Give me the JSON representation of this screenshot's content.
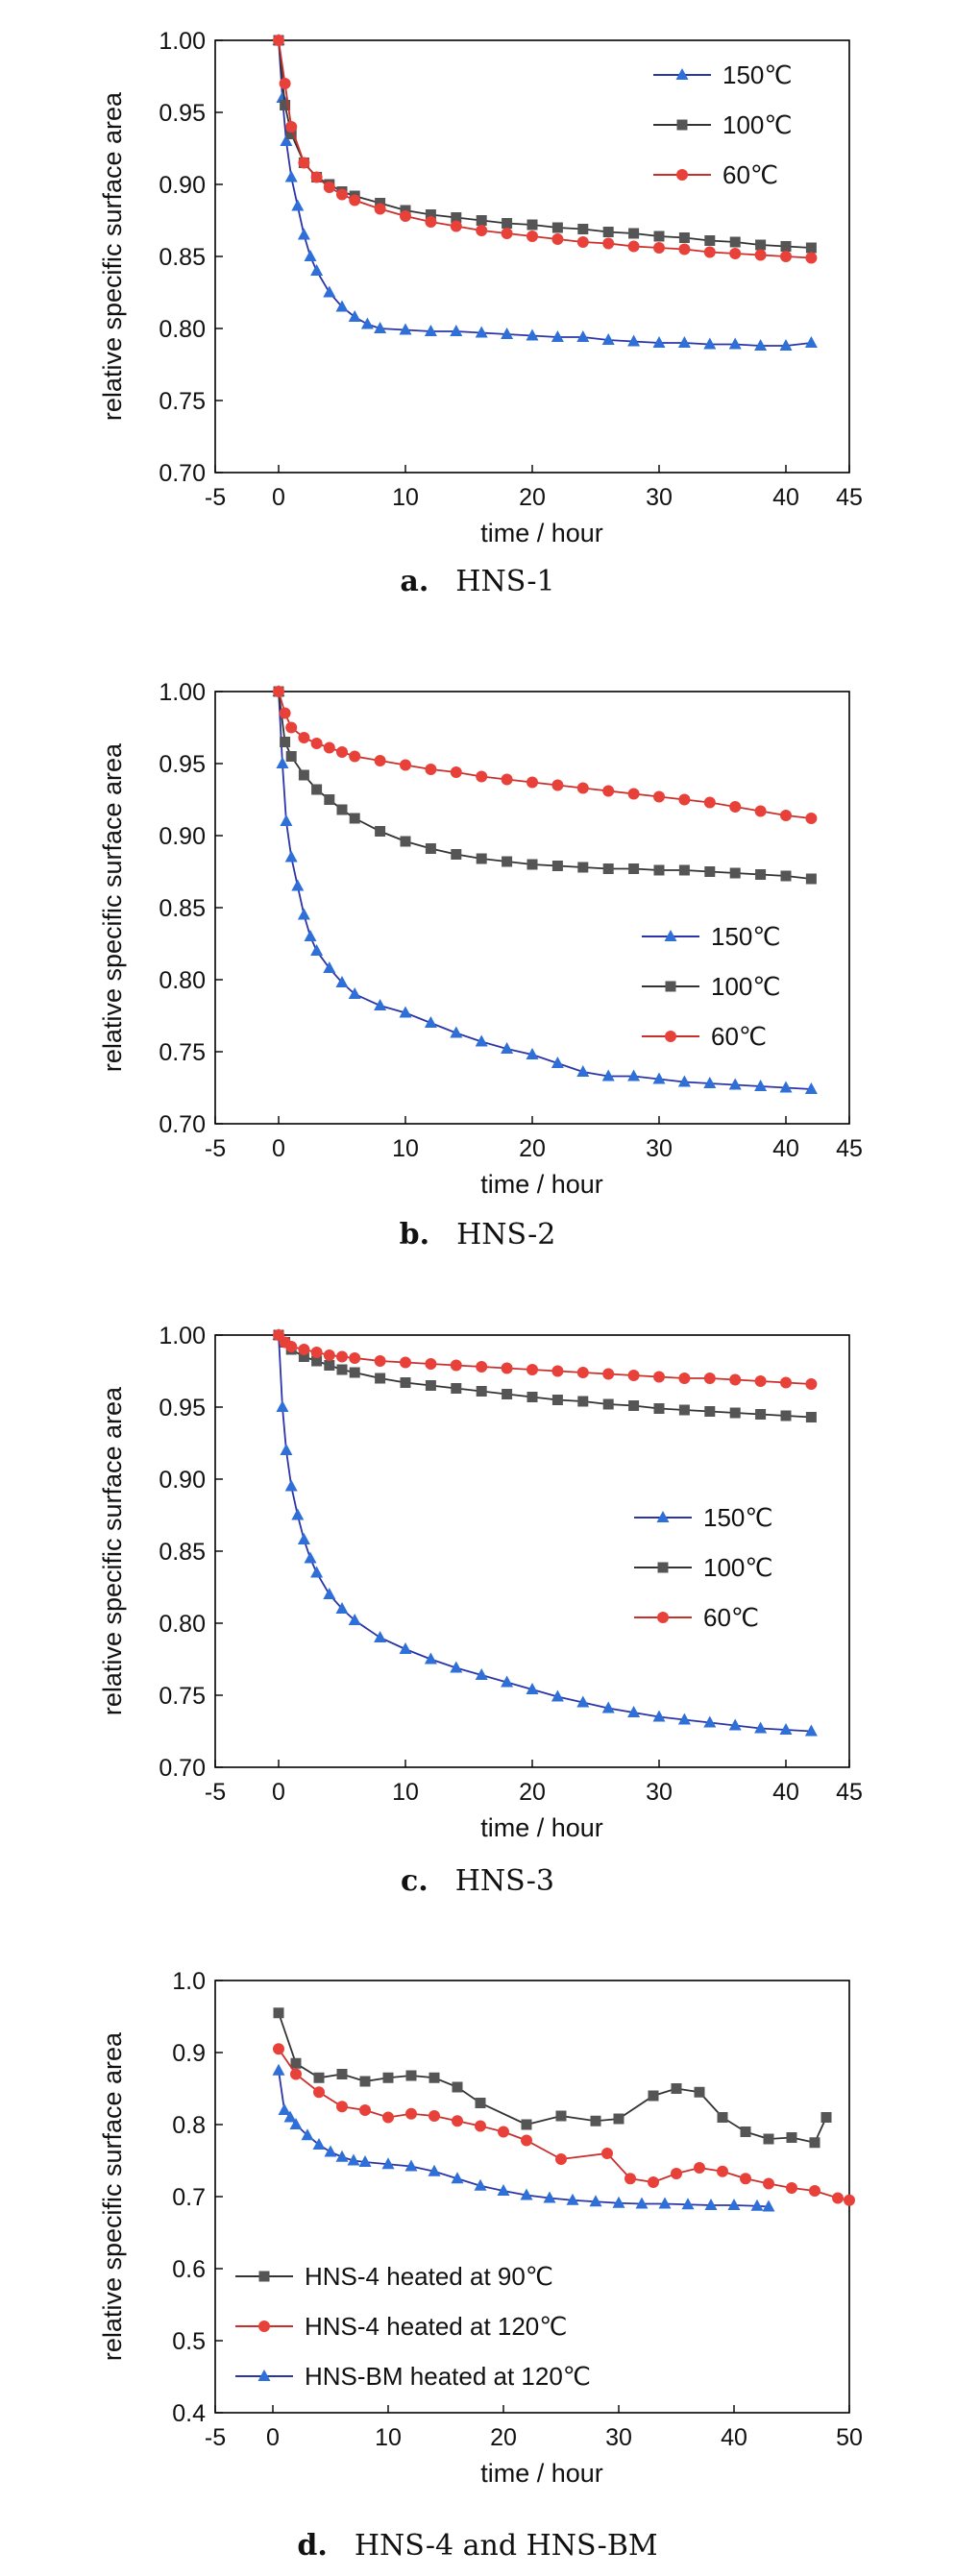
{
  "chart_data": [
    {
      "type": "scatter",
      "panel_letter": "a.",
      "caption": "HNS-1",
      "xlabel": "time / hour",
      "ylabel": "relative specific surface area",
      "xlim": [
        -5,
        45
      ],
      "ylim": [
        0.7,
        1.0
      ],
      "xticks": [
        "-5",
        "0",
        "10",
        "20",
        "30",
        "40",
        "45"
      ],
      "yticks": [
        "0.70",
        "0.75",
        "0.80",
        "0.85",
        "0.90",
        "0.95",
        "1.00"
      ],
      "legend_position": "top-right",
      "series": [
        {
          "name": "150℃",
          "marker": "triangle",
          "color": "#2e6fd8",
          "line_color": "#2b35a8",
          "x": [
            0,
            0.3,
            0.6,
            1,
            1.5,
            2,
            2.5,
            3,
            4,
            5,
            6,
            7,
            8,
            10,
            12,
            14,
            16,
            18,
            20,
            22,
            24,
            26,
            28,
            30,
            32,
            34,
            36,
            38,
            40,
            42
          ],
          "y": [
            1.0,
            0.96,
            0.93,
            0.905,
            0.885,
            0.865,
            0.85,
            0.84,
            0.825,
            0.815,
            0.808,
            0.803,
            0.8,
            0.799,
            0.798,
            0.798,
            0.797,
            0.796,
            0.795,
            0.794,
            0.794,
            0.792,
            0.791,
            0.79,
            0.79,
            0.789,
            0.789,
            0.788,
            0.788,
            0.79
          ]
        },
        {
          "name": "100℃",
          "marker": "square",
          "color": "#555555",
          "line_color": "#333333",
          "x": [
            0,
            0.5,
            1,
            2,
            3,
            4,
            5,
            6,
            8,
            10,
            12,
            14,
            16,
            18,
            20,
            22,
            24,
            26,
            28,
            30,
            32,
            34,
            36,
            38,
            40,
            42
          ],
          "y": [
            1.0,
            0.955,
            0.935,
            0.915,
            0.905,
            0.9,
            0.895,
            0.892,
            0.887,
            0.882,
            0.879,
            0.877,
            0.875,
            0.873,
            0.872,
            0.87,
            0.869,
            0.867,
            0.866,
            0.864,
            0.863,
            0.861,
            0.86,
            0.858,
            0.857,
            0.856
          ]
        },
        {
          "name": "60℃",
          "marker": "circle",
          "color": "#e8413a",
          "line_color": "#c9302c",
          "x": [
            0,
            0.5,
            1,
            2,
            3,
            4,
            5,
            6,
            8,
            10,
            12,
            14,
            16,
            18,
            20,
            22,
            24,
            26,
            28,
            30,
            32,
            34,
            36,
            38,
            40,
            42
          ],
          "y": [
            1.0,
            0.97,
            0.94,
            0.915,
            0.905,
            0.898,
            0.893,
            0.889,
            0.883,
            0.878,
            0.874,
            0.871,
            0.868,
            0.866,
            0.864,
            0.862,
            0.86,
            0.859,
            0.857,
            0.856,
            0.855,
            0.853,
            0.852,
            0.851,
            0.85,
            0.849
          ]
        }
      ]
    },
    {
      "type": "scatter",
      "panel_letter": "b.",
      "caption": "HNS-2",
      "xlabel": "time / hour",
      "ylabel": "relative specific surface area",
      "xlim": [
        -5,
        45
      ],
      "ylim": [
        0.7,
        1.0
      ],
      "xticks": [
        "-5",
        "0",
        "10",
        "20",
        "30",
        "40",
        "45"
      ],
      "yticks": [
        "0.70",
        "0.75",
        "0.80",
        "0.85",
        "0.90",
        "0.95",
        "1.00"
      ],
      "legend_position": "bottom-right",
      "series": [
        {
          "name": "150℃",
          "marker": "triangle",
          "color": "#2e6fd8",
          "line_color": "#2b35a8",
          "x": [
            0,
            0.3,
            0.6,
            1,
            1.5,
            2,
            2.5,
            3,
            4,
            5,
            6,
            8,
            10,
            12,
            14,
            16,
            18,
            20,
            22,
            24,
            26,
            28,
            30,
            32,
            34,
            36,
            38,
            40,
            42
          ],
          "y": [
            1.0,
            0.95,
            0.91,
            0.885,
            0.865,
            0.845,
            0.83,
            0.82,
            0.808,
            0.798,
            0.79,
            0.782,
            0.777,
            0.77,
            0.763,
            0.757,
            0.752,
            0.748,
            0.742,
            0.736,
            0.733,
            0.733,
            0.731,
            0.729,
            0.728,
            0.727,
            0.726,
            0.725,
            0.724
          ]
        },
        {
          "name": "100℃",
          "marker": "square",
          "color": "#555555",
          "line_color": "#333333",
          "x": [
            0,
            0.5,
            1,
            2,
            3,
            4,
            5,
            6,
            8,
            10,
            12,
            14,
            16,
            18,
            20,
            22,
            24,
            26,
            28,
            30,
            32,
            34,
            36,
            38,
            40,
            42
          ],
          "y": [
            1.0,
            0.965,
            0.955,
            0.942,
            0.932,
            0.925,
            0.918,
            0.912,
            0.903,
            0.896,
            0.891,
            0.887,
            0.884,
            0.882,
            0.88,
            0.879,
            0.878,
            0.877,
            0.877,
            0.876,
            0.876,
            0.875,
            0.874,
            0.873,
            0.872,
            0.87
          ]
        },
        {
          "name": "60℃",
          "marker": "circle",
          "color": "#e8413a",
          "line_color": "#c9302c",
          "x": [
            0,
            0.5,
            1,
            2,
            3,
            4,
            5,
            6,
            8,
            10,
            12,
            14,
            16,
            18,
            20,
            22,
            24,
            26,
            28,
            30,
            32,
            34,
            36,
            38,
            40,
            42
          ],
          "y": [
            1.0,
            0.985,
            0.975,
            0.968,
            0.964,
            0.961,
            0.958,
            0.955,
            0.952,
            0.949,
            0.946,
            0.944,
            0.941,
            0.939,
            0.937,
            0.935,
            0.933,
            0.931,
            0.929,
            0.927,
            0.925,
            0.923,
            0.92,
            0.917,
            0.914,
            0.912
          ]
        }
      ]
    },
    {
      "type": "scatter",
      "panel_letter": "c.",
      "caption": "HNS-3",
      "xlabel": "time / hour",
      "ylabel": "relative specific surface area",
      "xlim": [
        -5,
        45
      ],
      "ylim": [
        0.7,
        1.0
      ],
      "xticks": [
        "-5",
        "0",
        "10",
        "20",
        "30",
        "40",
        "45"
      ],
      "yticks": [
        "0.70",
        "0.75",
        "0.80",
        "0.85",
        "0.90",
        "0.95",
        "1.00"
      ],
      "legend_position": "center-right",
      "series": [
        {
          "name": "150℃",
          "marker": "triangle",
          "color": "#2e6fd8",
          "line_color": "#2b35a8",
          "x": [
            0,
            0.3,
            0.6,
            1,
            1.5,
            2,
            2.5,
            3,
            4,
            5,
            6,
            8,
            10,
            12,
            14,
            16,
            18,
            20,
            22,
            24,
            26,
            28,
            30,
            32,
            34,
            36,
            38,
            40,
            42
          ],
          "y": [
            1.0,
            0.95,
            0.92,
            0.895,
            0.875,
            0.858,
            0.845,
            0.835,
            0.82,
            0.81,
            0.802,
            0.79,
            0.782,
            0.775,
            0.769,
            0.764,
            0.759,
            0.754,
            0.749,
            0.745,
            0.741,
            0.738,
            0.735,
            0.733,
            0.731,
            0.729,
            0.727,
            0.726,
            0.725
          ]
        },
        {
          "name": "100℃",
          "marker": "square",
          "color": "#555555",
          "line_color": "#333333",
          "x": [
            0,
            0.5,
            1,
            2,
            3,
            4,
            5,
            6,
            8,
            10,
            12,
            14,
            16,
            18,
            20,
            22,
            24,
            26,
            28,
            30,
            32,
            34,
            36,
            38,
            40,
            42
          ],
          "y": [
            1.0,
            0.995,
            0.99,
            0.985,
            0.982,
            0.979,
            0.976,
            0.974,
            0.97,
            0.967,
            0.965,
            0.963,
            0.961,
            0.959,
            0.957,
            0.955,
            0.954,
            0.952,
            0.951,
            0.949,
            0.948,
            0.947,
            0.946,
            0.945,
            0.944,
            0.943
          ]
        },
        {
          "name": "60℃",
          "marker": "circle",
          "color": "#e8413a",
          "line_color": "#c9302c",
          "x": [
            0,
            0.5,
            1,
            2,
            3,
            4,
            5,
            6,
            8,
            10,
            12,
            14,
            16,
            18,
            20,
            22,
            24,
            26,
            28,
            30,
            32,
            34,
            36,
            38,
            40,
            42
          ],
          "y": [
            1.0,
            0.995,
            0.992,
            0.99,
            0.988,
            0.986,
            0.985,
            0.984,
            0.982,
            0.981,
            0.98,
            0.979,
            0.978,
            0.977,
            0.976,
            0.975,
            0.974,
            0.973,
            0.972,
            0.971,
            0.97,
            0.97,
            0.969,
            0.968,
            0.967,
            0.966
          ]
        }
      ]
    },
    {
      "type": "line",
      "panel_letter": "d.",
      "caption": "HNS-4 and HNS-BM",
      "xlabel": "time / hour",
      "ylabel": "relative specific surface area",
      "xlim": [
        -5,
        50
      ],
      "ylim": [
        0.4,
        1.0
      ],
      "xticks": [
        "-5",
        "0",
        "10",
        "20",
        "30",
        "40",
        "50"
      ],
      "yticks": [
        "0.4",
        "0.5",
        "0.6",
        "0.7",
        "0.8",
        "0.9",
        "1.0"
      ],
      "legend_position": "bottom-left",
      "series": [
        {
          "name": "HNS-4 heated at 90℃",
          "marker": "square",
          "color": "#555555",
          "line_color": "#333333",
          "x": [
            0.5,
            2,
            4,
            6,
            8,
            10,
            12,
            14,
            16,
            18,
            22,
            25,
            28,
            30,
            33,
            35,
            37,
            39,
            41,
            43,
            45,
            47,
            48
          ],
          "y": [
            0.955,
            0.885,
            0.865,
            0.87,
            0.86,
            0.865,
            0.868,
            0.865,
            0.852,
            0.83,
            0.8,
            0.812,
            0.805,
            0.808,
            0.84,
            0.85,
            0.845,
            0.81,
            0.79,
            0.78,
            0.782,
            0.775,
            0.81
          ]
        },
        {
          "name": "HNS-4 heated at 120℃",
          "marker": "circle",
          "color": "#e8413a",
          "line_color": "#c9302c",
          "x": [
            0.5,
            2,
            4,
            6,
            8,
            10,
            12,
            14,
            16,
            18,
            20,
            22,
            25,
            29,
            31,
            33,
            35,
            37,
            39,
            41,
            43,
            45,
            47,
            49,
            50
          ],
          "y": [
            0.905,
            0.87,
            0.845,
            0.825,
            0.82,
            0.81,
            0.815,
            0.812,
            0.805,
            0.798,
            0.79,
            0.778,
            0.752,
            0.76,
            0.725,
            0.72,
            0.732,
            0.74,
            0.735,
            0.725,
            0.718,
            0.712,
            0.708,
            0.698,
            0.695
          ]
        },
        {
          "name": "HNS-BM heated at 120℃",
          "marker": "triangle",
          "color": "#2e6fd8",
          "line_color": "#2b35a8",
          "x": [
            0.5,
            1,
            1.5,
            2,
            3,
            4,
            5,
            6,
            7,
            8,
            10,
            12,
            14,
            16,
            18,
            20,
            22,
            24,
            26,
            28,
            30,
            32,
            34,
            36,
            38,
            40,
            42,
            43
          ],
          "y": [
            0.875,
            0.82,
            0.81,
            0.8,
            0.785,
            0.772,
            0.762,
            0.755,
            0.75,
            0.748,
            0.745,
            0.742,
            0.735,
            0.725,
            0.715,
            0.708,
            0.702,
            0.698,
            0.695,
            0.693,
            0.691,
            0.69,
            0.69,
            0.689,
            0.688,
            0.688,
            0.687,
            0.686
          ]
        }
      ]
    }
  ]
}
